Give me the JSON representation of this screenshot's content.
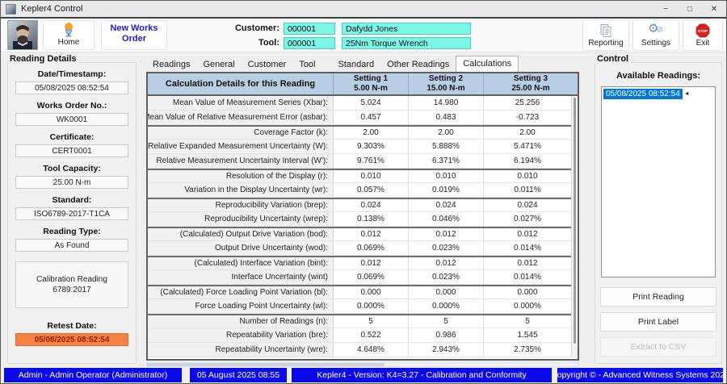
{
  "window": {
    "title": "Kepler4 Control",
    "controls": {
      "minimize": "−",
      "maximize": "□",
      "close": "✕"
    }
  },
  "toolbar": {
    "home": "Home",
    "new_works_order": "New Works Order",
    "customer_label": "Customer:",
    "customer_code": "000001",
    "customer_name": "Dafydd Jones",
    "tool_label": "Tool:",
    "tool_code": "000001",
    "tool_name": "25Nm Torque Wrench",
    "reporting": "Reporting",
    "settings": "Settings",
    "exit": "Exit"
  },
  "reading_details": {
    "title": "Reading Details",
    "fields": [
      {
        "label": "Date/Timestamp:",
        "value": "05/08/2025 08:52:54"
      },
      {
        "label": "Works Order No.:",
        "value": "WK0001"
      },
      {
        "label": "Certificate:",
        "value": "CERT0001"
      },
      {
        "label": "Tool Capacity:",
        "value": "25.00 N-m"
      },
      {
        "label": "Standard:",
        "value": "ISO6789-2017-T1CA"
      },
      {
        "label": "Reading Type:",
        "value": "As Found"
      }
    ],
    "calibration_note_line1": "Calibration Reading",
    "calibration_note_line2": "6789:2017",
    "retest_label": "Retest Date:",
    "retest_value": "05/08/2025 08:52:54"
  },
  "tabs": {
    "items": [
      "Readings",
      "General",
      "Customer",
      "Tool",
      "Standard",
      "Other Readings",
      "Calculations"
    ],
    "active": "Calculations"
  },
  "calc_table": {
    "corner_header": "Calculation Details for this Reading",
    "columns": [
      {
        "name": "Setting 1",
        "sub": "5.00 N-m"
      },
      {
        "name": "Setting 2",
        "sub": "15.00 N-m"
      },
      {
        "name": "Setting 3",
        "sub": "25.00 N-m"
      }
    ],
    "rows": [
      {
        "label": "Mean Value of Measurement Series (Xbar):",
        "values": [
          "5.024",
          "14.980",
          "25.256"
        ],
        "sep": false
      },
      {
        "label": "Mean Value of Relative Measurement Error (asbar):",
        "values": [
          "0.457",
          "0.483",
          "-0.723"
        ],
        "sep": false
      },
      {
        "label": "Coverage Factor (k):",
        "values": [
          "2.00",
          "2.00",
          "2.00"
        ],
        "sep": true
      },
      {
        "label": "Relative Expanded Measurement Uncertainty (W):",
        "values": [
          "9.303%",
          "5.888%",
          "5.471%"
        ],
        "sep": false
      },
      {
        "label": "Relative Measurement Uncertainty Interval (W'):",
        "values": [
          "9.761%",
          "6.371%",
          "6.194%"
        ],
        "sep": false
      },
      {
        "label": "Resolution of the Display (r):",
        "values": [
          "0.010",
          "0.010",
          "0.010"
        ],
        "sep": true
      },
      {
        "label": "Variation in the Display Uncertainty (wr):",
        "values": [
          "0.057%",
          "0.019%",
          "0.011%"
        ],
        "sep": false
      },
      {
        "label": "Reproducibility Variation (brep):",
        "values": [
          "0.024",
          "0.024",
          "0.024"
        ],
        "sep": true
      },
      {
        "label": "Reproducibility Uncertainty (wrep):",
        "values": [
          "0.138%",
          "0.046%",
          "0.027%"
        ],
        "sep": false
      },
      {
        "label": "(Calculated) Output Drive Variation (bod):",
        "values": [
          "0.012",
          "0.012",
          "0.012"
        ],
        "sep": true
      },
      {
        "label": "Output Drive Uncertainty (wod):",
        "values": [
          "0.069%",
          "0.023%",
          "0.014%"
        ],
        "sep": false
      },
      {
        "label": "(Calculated) Interface Variation (bint):",
        "values": [
          "0.012",
          "0.012",
          "0.012"
        ],
        "sep": true
      },
      {
        "label": "Interface Uncertainty (wint)",
        "values": [
          "0.069%",
          "0.023%",
          "0.014%"
        ],
        "sep": false
      },
      {
        "label": "(Calculated) Force Loading Point Variation (bl):",
        "values": [
          "0.000",
          "0.000",
          "0.000"
        ],
        "sep": true
      },
      {
        "label": "Force Loading Point Uncertainty (wl):",
        "values": [
          "0.000%",
          "0.000%",
          "0.000%"
        ],
        "sep": false
      },
      {
        "label": "Number of Readings (n):",
        "values": [
          "5",
          "5",
          "5"
        ],
        "sep": true
      },
      {
        "label": "Repeatability Variation (bre):",
        "values": [
          "0.522",
          "0.986",
          "1.545"
        ],
        "sep": false
      },
      {
        "label": "Repeatability Uncertainty (wre):",
        "values": [
          "4.648%",
          "2.943%",
          "2.735%"
        ],
        "sep": false
      }
    ]
  },
  "control": {
    "title": "Control",
    "available_readings_label": "Available Readings:",
    "selected_marker": "◄",
    "readings": [
      {
        "label": "05/08/2025 08:52:54",
        "selected": true
      }
    ],
    "print_reading": "Print Reading",
    "print_label": "Print Label",
    "extract_csv": "Extract to CSV"
  },
  "statusbar": {
    "segments": [
      "Admin - Admin Operator (Administrator)",
      "05 August 2025 08:55",
      "Kepler4 - Version: K4=3.27 - Calibration and Conformity",
      "Copyright © - Advanced Witness Systems 2020"
    ]
  },
  "colors": {
    "field_cyan": "#7df6e8",
    "table_header_blue": "#b9cde5",
    "retest_orange": "#f58245",
    "selection_blue": "#0078d7",
    "status_blue": "#0a0ae8",
    "link_blue": "#1b1bd6"
  }
}
